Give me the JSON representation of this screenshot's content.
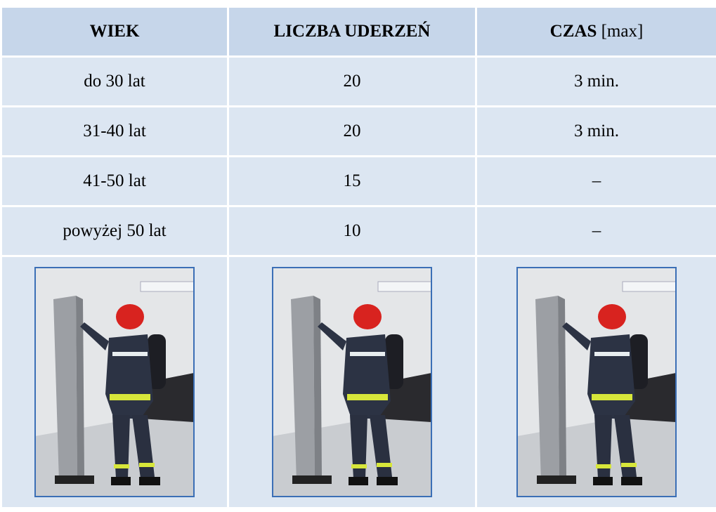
{
  "table": {
    "header": [
      "WIEK",
      "LICZBA UDERZEŃ",
      {
        "bold": "CZAS",
        "normal": "[max]"
      }
    ],
    "rows": [
      [
        "do 30 lat",
        20,
        "3 min."
      ],
      [
        "31-40 lat",
        20,
        "3 min."
      ],
      [
        "41-50 lat",
        15,
        "–"
      ],
      [
        "powyżej 50 lat",
        10,
        "–"
      ]
    ]
  }
}
